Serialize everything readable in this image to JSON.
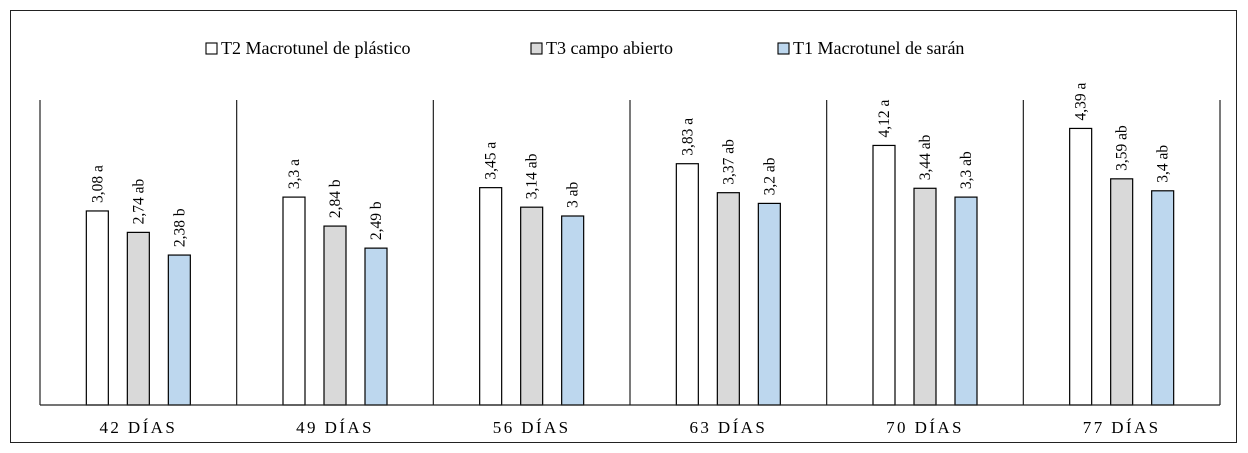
{
  "chart_data": {
    "type": "bar",
    "categories": [
      "42 DÍAS",
      "49 DÍAS",
      "56 DÍAS",
      "63 DÍAS",
      "70 DÍAS",
      "77 DÍAS"
    ],
    "series": [
      {
        "name": "T2 Macrotunel de plástico",
        "color": "#ffffff",
        "values": [
          3.08,
          3.3,
          3.45,
          3.83,
          4.12,
          4.39
        ],
        "labels": [
          "3,08 a",
          "3,3 a",
          "3,45 a",
          "3,83 a",
          "4,12 a",
          "4,39 a"
        ]
      },
      {
        "name": "T3 campo abierto",
        "color": "#d9d9d9",
        "values": [
          2.74,
          2.84,
          3.14,
          3.37,
          3.44,
          3.59
        ],
        "labels": [
          "2,74 ab",
          "2,84 b",
          "3,14 ab",
          "3,37 ab",
          "3,44 ab",
          "3,59 ab"
        ]
      },
      {
        "name": "T1 Macrotunel de sarán",
        "color": "#bdd7ee",
        "values": [
          2.38,
          2.49,
          3.0,
          3.2,
          3.3,
          3.4
        ],
        "labels": [
          "2,38 b",
          "2,49 b",
          "3 ab",
          "3,2 ab",
          "3,3 ab",
          "3,4 ab"
        ]
      }
    ],
    "ylim": [
      0,
      5
    ],
    "grid": false,
    "legend_position": "top-center",
    "category_separators": true
  }
}
